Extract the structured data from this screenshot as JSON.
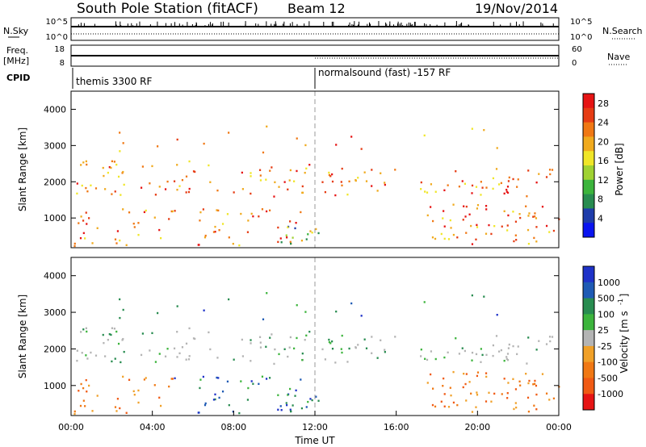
{
  "header": {
    "station": "South Pole Station (fitACF)",
    "beam": "Beam 12",
    "date": "19/Nov/2014"
  },
  "top_panels": {
    "nsky_label": "N.Sky",
    "nsearch_label": "N.Search",
    "nsky_ticks": [
      "10^5",
      "10^0"
    ],
    "nsearch_ticks": [
      "10^5",
      "10^0"
    ],
    "freq_label": "Freq.",
    "freq_unit": "[MHz]",
    "freq_ticks": [
      "18",
      "8"
    ],
    "nave_label": "Nave",
    "nave_ticks": [
      "60",
      "0"
    ],
    "cpid_label": "CPID",
    "cpid_segments": [
      {
        "text": "themis 3300 RF",
        "start_hour": 0
      },
      {
        "text": "normalsound (fast) -157 RF",
        "start_hour": 12
      }
    ]
  },
  "chart_data": [
    {
      "type": "heatmap",
      "title": "",
      "xlabel": "",
      "ylabel": "Slant Range [km]",
      "xlim": [
        0,
        24
      ],
      "ylim": [
        180,
        4500
      ],
      "y_ticks": [
        1000,
        2000,
        3000,
        4000
      ],
      "colorbar_label": "Power [dB]",
      "colorbar_ticks": [
        4,
        8,
        12,
        16,
        20,
        24,
        28
      ],
      "colorbar_colors": [
        "#0a14f0",
        "#1e3caa",
        "#288c50",
        "#3cb43c",
        "#a0d232",
        "#f0e628",
        "#f0aa1e",
        "#f07814",
        "#e63c14",
        "#e61414"
      ],
      "clim": [
        0,
        30
      ]
    },
    {
      "type": "heatmap",
      "title": "",
      "xlabel": "Time UT",
      "ylabel": "Slant Range [km]",
      "xlim": [
        0,
        24
      ],
      "ylim": [
        180,
        4500
      ],
      "x_ticks": [
        "00:00",
        "04:00",
        "08:00",
        "12:00",
        "16:00",
        "20:00",
        "00:00"
      ],
      "y_ticks": [
        1000,
        2000,
        3000,
        4000
      ],
      "colorbar_label": "Velocity [m s^-1]",
      "colorbar_ticks": [
        "1000",
        "500",
        "100",
        "25",
        "-25",
        "-100",
        "-500",
        "-1000"
      ],
      "colorbar_colors": [
        "#1e32c8",
        "#1e5ab4",
        "#288c50",
        "#3cb43c",
        "#b4b4b4",
        "#f0a028",
        "#f07814",
        "#f05a14",
        "#e61414"
      ],
      "ground_scatter_color": "#b4b4b4"
    }
  ]
}
